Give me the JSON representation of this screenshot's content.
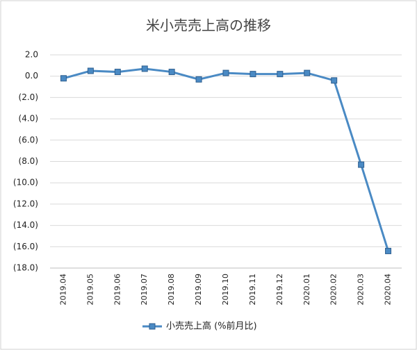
{
  "chart_data": {
    "type": "line",
    "title": "米小売売上高の推移",
    "categories": [
      "2019.04",
      "2019.05",
      "2019.06",
      "2019.07",
      "2019.08",
      "2019.09",
      "2019.10",
      "2019.11",
      "2019.12",
      "2020.01",
      "2020.02",
      "2020.03",
      "2020.04"
    ],
    "series": [
      {
        "name": "小売売上高 (%前月比)",
        "color": "#4a8ac4",
        "values": [
          -0.2,
          0.5,
          0.4,
          0.7,
          0.4,
          -0.3,
          0.3,
          0.2,
          0.2,
          0.3,
          -0.4,
          -8.3,
          -16.4
        ]
      }
    ],
    "ylim": [
      -18,
      2
    ],
    "yticks": [
      {
        "value": 2,
        "label": "2.0"
      },
      {
        "value": 0,
        "label": "0.0"
      },
      {
        "value": -2,
        "label": "(2.0)"
      },
      {
        "value": -4,
        "label": "(4.0)"
      },
      {
        "value": -6,
        "label": "(6.0)"
      },
      {
        "value": -8,
        "label": "(8.0)"
      },
      {
        "value": -10,
        "label": "(10.0)"
      },
      {
        "value": -12,
        "label": "(12.0)"
      },
      {
        "value": -14,
        "label": "(14.0)"
      },
      {
        "value": -16,
        "label": "(16.0)"
      },
      {
        "value": -18,
        "label": "(18.0)"
      }
    ],
    "negative_label_color": "#c00000",
    "grid": true,
    "legend": "bottom"
  }
}
